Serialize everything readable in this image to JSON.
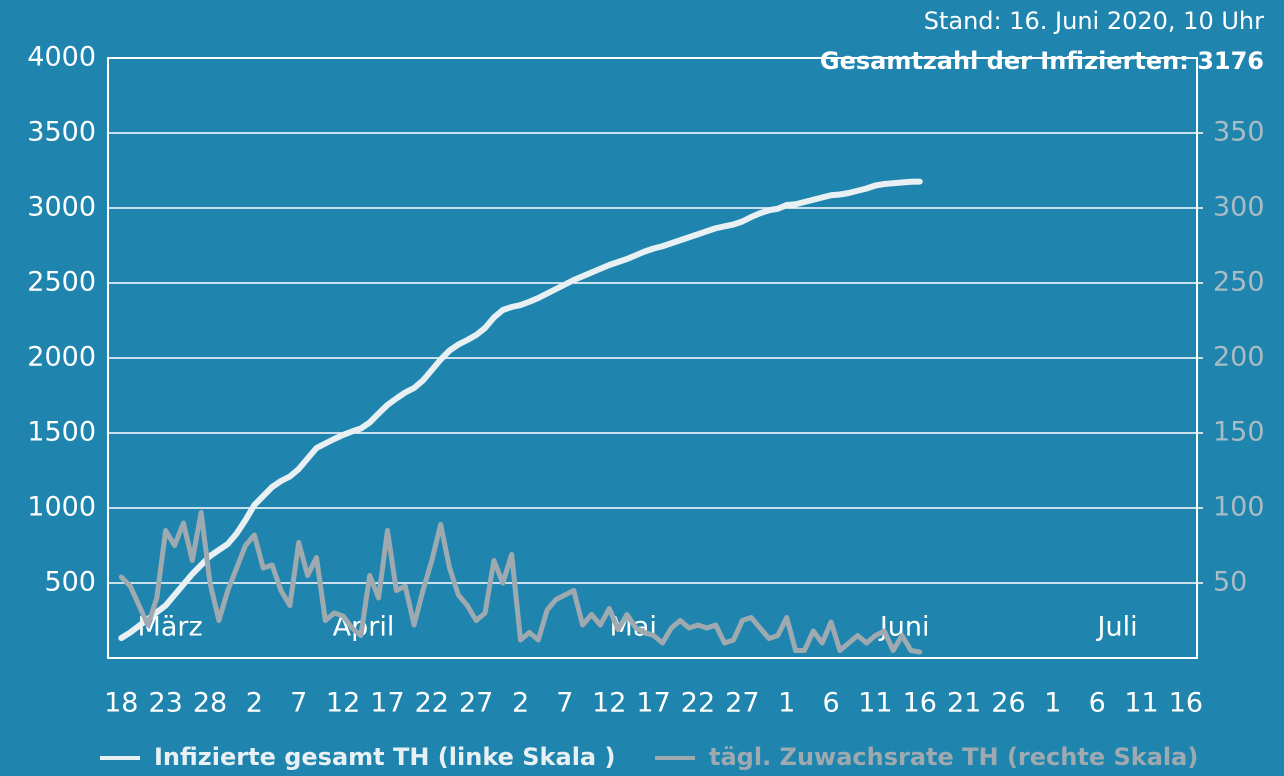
{
  "chart_data": {
    "type": "line",
    "title": "Stand: 16. Juni 2020, 10 Uhr",
    "subtitle": "Gesamtzahl der Infizierten: 3176",
    "x": [
      0,
      1,
      2,
      3,
      4,
      5,
      6,
      7,
      8,
      9,
      10,
      11,
      12,
      13,
      14,
      15,
      16,
      17,
      18,
      19,
      20,
      21,
      22,
      23,
      24,
      25,
      26,
      27,
      28,
      29,
      30,
      31,
      32,
      33,
      34,
      35,
      36,
      37,
      38,
      39,
      40,
      41,
      42,
      43,
      44,
      45,
      46,
      47,
      48,
      49,
      50,
      51,
      52,
      53,
      54,
      55,
      56,
      57,
      58,
      59,
      60,
      61,
      62,
      63,
      64,
      65,
      66,
      67,
      68,
      69,
      70,
      71,
      72,
      73,
      74,
      75,
      76,
      77,
      78,
      79,
      80,
      81,
      82,
      83,
      84,
      85,
      86,
      87,
      88,
      89,
      90
    ],
    "series": [
      {
        "name": "Infizierte gesamt TH (linke Skala )",
        "color": "#e8f0f3",
        "axis": "y",
        "values": [
          133,
          170,
          215,
          260,
          305,
          350,
          420,
          490,
          560,
          620,
          680,
          720,
          760,
          830,
          920,
          1020,
          1080,
          1140,
          1180,
          1210,
          1260,
          1330,
          1400,
          1430,
          1460,
          1487,
          1510,
          1530,
          1570,
          1630,
          1687,
          1730,
          1770,
          1800,
          1850,
          1920,
          1990,
          2050,
          2090,
          2120,
          2153,
          2200,
          2270,
          2320,
          2340,
          2353,
          2375,
          2400,
          2430,
          2460,
          2490,
          2520,
          2545,
          2570,
          2595,
          2620,
          2640,
          2660,
          2685,
          2710,
          2730,
          2745,
          2765,
          2785,
          2805,
          2825,
          2845,
          2865,
          2878,
          2890,
          2910,
          2940,
          2965,
          2985,
          2995,
          3020,
          3025,
          3040,
          3055,
          3070,
          3085,
          3090,
          3100,
          3115,
          3130,
          3150,
          3160,
          3165,
          3170,
          3175,
          3176
        ]
      },
      {
        "name": "tägl. Zuwachsrate TH (rechte Skala)",
        "color": "#9eaab0",
        "axis": "y2",
        "values": [
          54,
          48,
          35,
          22,
          40,
          85,
          75,
          90,
          65,
          97,
          50,
          25,
          45,
          60,
          75,
          82,
          60,
          62,
          45,
          35,
          77,
          55,
          67,
          25,
          30,
          28,
          20,
          15,
          55,
          40,
          85,
          45,
          48,
          22,
          45,
          65,
          89,
          60,
          42,
          35,
          25,
          30,
          65,
          50,
          69,
          12,
          17,
          12,
          32,
          39,
          42,
          45,
          22,
          29,
          22,
          33,
          19,
          29,
          20,
          17,
          15,
          10,
          20,
          25,
          20,
          22,
          20,
          22,
          10,
          12,
          25,
          27,
          20,
          13,
          15,
          27,
          5,
          5,
          18,
          10,
          24,
          5,
          10,
          15,
          10,
          15,
          18,
          5,
          15,
          5,
          4
        ]
      }
    ],
    "xlim": [
      -1.5,
      121.25
    ],
    "xticks": [
      {
        "value": 0,
        "label": "18"
      },
      {
        "value": 5,
        "label": "23"
      },
      {
        "value": 10,
        "label": "28"
      },
      {
        "value": 15,
        "label": "2"
      },
      {
        "value": 20,
        "label": "7"
      },
      {
        "value": 25,
        "label": "12"
      },
      {
        "value": 30,
        "label": "17"
      },
      {
        "value": 35,
        "label": "22"
      },
      {
        "value": 40,
        "label": "27"
      },
      {
        "value": 45,
        "label": "2"
      },
      {
        "value": 50,
        "label": "7"
      },
      {
        "value": 55,
        "label": "12"
      },
      {
        "value": 60,
        "label": "17"
      },
      {
        "value": 65,
        "label": "22"
      },
      {
        "value": 70,
        "label": "27"
      },
      {
        "value": 75,
        "label": "1"
      },
      {
        "value": 80,
        "label": "6"
      },
      {
        "value": 85,
        "label": "11"
      },
      {
        "value": 90,
        "label": "16"
      },
      {
        "value": 95,
        "label": "21"
      },
      {
        "value": 100,
        "label": "26"
      },
      {
        "value": 105,
        "label": "1"
      },
      {
        "value": 110,
        "label": "6"
      },
      {
        "value": 115,
        "label": "11"
      },
      {
        "value": 120,
        "label": "16"
      }
    ],
    "month_labels": [
      {
        "value": 5.5,
        "label": "März"
      },
      {
        "value": 27.3,
        "label": "April"
      },
      {
        "value": 57.7,
        "label": "Mai"
      },
      {
        "value": 88.3,
        "label": "Juni"
      },
      {
        "value": 112.3,
        "label": "Juli"
      }
    ],
    "ylim": [
      0,
      4000
    ],
    "yticks": [
      500,
      1000,
      1500,
      2000,
      2500,
      3000,
      3500,
      4000
    ],
    "y2lim": [
      0,
      400
    ],
    "y2ticks": [
      50,
      100,
      150,
      200,
      250,
      300,
      350
    ],
    "grid": true
  }
}
